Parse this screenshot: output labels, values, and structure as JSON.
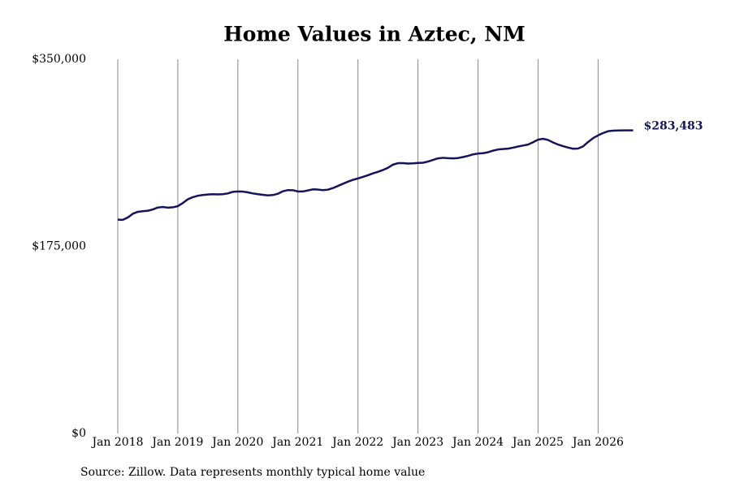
{
  "chart_data": {
    "type": "line",
    "title": "Home Values in Aztec, NM",
    "source": "Source: Zillow. Data represents monthly typical home value",
    "color": "#14145a",
    "grid": true,
    "x": [
      "2018-01",
      "2018-02",
      "2018-03",
      "2018-04",
      "2018-05",
      "2018-06",
      "2018-07",
      "2018-08",
      "2018-09",
      "2018-10",
      "2018-11",
      "2018-12",
      "2019-01",
      "2019-02",
      "2019-03",
      "2019-04",
      "2019-05",
      "2019-06",
      "2019-07",
      "2019-08",
      "2019-09",
      "2019-10",
      "2019-11",
      "2019-12",
      "2020-01",
      "2020-02",
      "2020-03",
      "2020-04",
      "2020-05",
      "2020-06",
      "2020-07",
      "2020-08",
      "2020-09",
      "2020-10",
      "2020-11",
      "2020-12",
      "2021-01",
      "2021-02",
      "2021-03",
      "2021-04",
      "2021-05",
      "2021-06",
      "2021-07",
      "2021-08",
      "2021-09",
      "2021-10",
      "2021-11",
      "2021-12",
      "2022-01",
      "2022-02",
      "2022-03",
      "2022-04",
      "2022-05",
      "2022-06",
      "2022-07",
      "2022-08",
      "2022-09",
      "2022-10",
      "2022-11",
      "2022-12",
      "2023-01",
      "2023-02",
      "2023-03",
      "2023-04",
      "2023-05",
      "2023-06",
      "2023-07",
      "2023-08",
      "2023-09",
      "2023-10",
      "2023-11",
      "2023-12",
      "2024-01",
      "2024-02",
      "2024-03",
      "2024-04",
      "2024-05",
      "2024-06",
      "2024-07",
      "2024-08",
      "2024-09",
      "2024-10",
      "2024-11",
      "2024-12",
      "2025-01",
      "2025-02",
      "2025-03",
      "2025-04",
      "2025-05",
      "2025-06",
      "2025-07",
      "2025-08",
      "2025-09",
      "2025-10",
      "2025-11",
      "2025-12",
      "2026-01",
      "2026-02",
      "2026-03",
      "2026-04",
      "2026-05",
      "2026-06",
      "2026-07",
      "2026-08"
    ],
    "values": [
      200000,
      199800,
      202000,
      205500,
      207300,
      207800,
      208300,
      209500,
      211300,
      211800,
      211200,
      211500,
      212600,
      215500,
      219000,
      221000,
      222300,
      223000,
      223500,
      223800,
      223600,
      223800,
      224500,
      226000,
      226300,
      226200,
      225500,
      224500,
      223800,
      223200,
      222600,
      223000,
      224200,
      226500,
      227600,
      227500,
      226300,
      226300,
      227300,
      228300,
      228100,
      227600,
      228000,
      229500,
      231500,
      233500,
      235500,
      237200,
      238500,
      240000,
      241500,
      243300,
      244700,
      246400,
      248500,
      251400,
      252800,
      252800,
      252400,
      252600,
      253000,
      253200,
      254300,
      255800,
      257300,
      257800,
      257500,
      257300,
      257600,
      258500,
      259600,
      261000,
      261800,
      262100,
      263000,
      264500,
      265600,
      266000,
      266400,
      267300,
      268400,
      269300,
      270200,
      272400,
      274800,
      275600,
      274500,
      272200,
      270200,
      268700,
      267400,
      266300,
      266500,
      268500,
      272600,
      276200,
      278800,
      281000,
      282700,
      283200,
      283400,
      283500,
      283500,
      283483
    ],
    "value_labels": [
      null,
      null,
      null,
      null,
      null,
      null,
      null,
      null,
      null,
      null,
      null,
      null,
      null,
      null,
      null,
      null,
      null,
      null,
      null,
      null,
      null,
      null,
      null,
      null,
      null,
      null,
      null,
      null,
      null,
      null,
      null,
      null,
      null,
      null,
      null,
      null,
      null,
      null,
      null,
      null,
      null,
      null,
      null,
      null,
      null,
      null,
      null,
      null,
      null,
      null,
      null,
      null,
      null,
      null,
      null,
      null,
      null,
      null,
      null,
      null,
      null,
      null,
      null,
      null,
      null,
      null,
      null,
      null,
      null,
      null,
      null,
      null,
      null,
      null,
      null,
      null,
      null,
      null,
      null,
      null,
      null,
      null,
      null,
      null,
      null,
      null,
      null,
      null,
      null,
      null,
      null,
      null,
      null,
      null,
      null,
      null,
      null,
      null,
      null,
      null,
      null,
      null,
      null,
      "$283,483"
    ],
    "xticks": [
      {
        "value": "2018-01",
        "label": "Jan 2018"
      },
      {
        "value": "2019-01",
        "label": "Jan 2019"
      },
      {
        "value": "2020-01",
        "label": "Jan 2020"
      },
      {
        "value": "2021-01",
        "label": "Jan 2021"
      },
      {
        "value": "2022-01",
        "label": "Jan 2022"
      },
      {
        "value": "2023-01",
        "label": "Jan 2023"
      },
      {
        "value": "2024-01",
        "label": "Jan 2024"
      },
      {
        "value": "2025-01",
        "label": "Jan 2025"
      },
      {
        "value": "2026-01",
        "label": "Jan 2026"
      }
    ],
    "ylim": [
      0,
      350000
    ],
    "yticks": [
      {
        "value": 0,
        "label": "$0"
      },
      {
        "value": 175000,
        "label": "$175,000"
      },
      {
        "value": 350000,
        "label": "$350,000"
      }
    ]
  }
}
